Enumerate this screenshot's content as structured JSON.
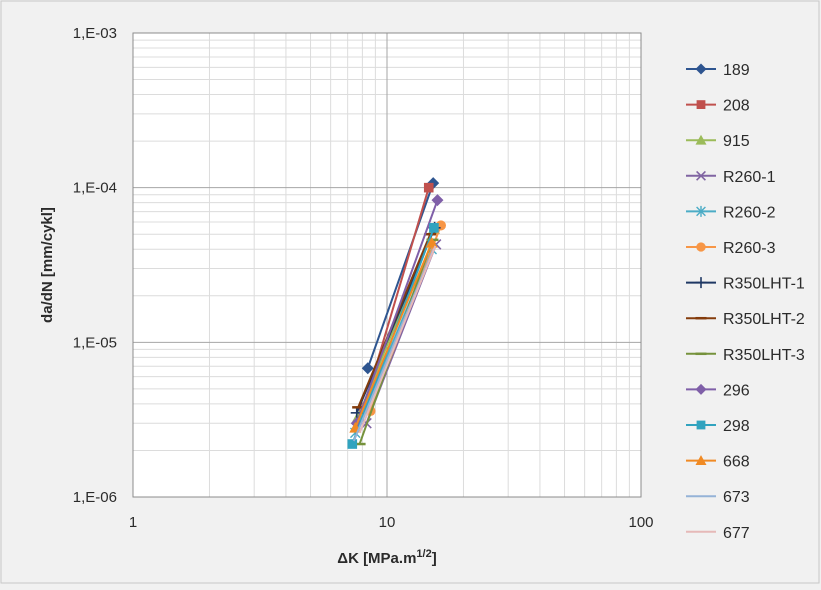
{
  "chart_data": {
    "type": "scatter",
    "xscale": "log",
    "yscale": "log",
    "xlim": [
      1,
      100
    ],
    "ylim": [
      1e-06,
      0.001
    ],
    "xticks": [
      {
        "value": 1,
        "label": "1"
      },
      {
        "value": 10,
        "label": "10"
      },
      {
        "value": 100,
        "label": "100"
      }
    ],
    "yticks": [
      {
        "value": 1e-06,
        "label": "1,E-06"
      },
      {
        "value": 1e-05,
        "label": "1,E-05"
      },
      {
        "value": 0.0001,
        "label": "1,E-04"
      },
      {
        "value": 0.001,
        "label": "1,E-03"
      }
    ],
    "xlabel": "ΔK [MPa.m",
    "xlabel_sup": "1/2",
    "xlabel_end": "]",
    "ylabel": "da/dN [mm/cykl]",
    "grid": "major and minor",
    "legend_position": "right",
    "series": [
      {
        "name": "189",
        "color": "#2e5590",
        "marker": "diamond",
        "points": [
          [
            8.4,
            6.8e-06
          ],
          [
            15.2,
            0.000107
          ]
        ]
      },
      {
        "name": "208",
        "color": "#c0504d",
        "marker": "square",
        "points": [
          [
            8.1,
            3.8e-06
          ],
          [
            14.6,
            0.0001
          ]
        ]
      },
      {
        "name": "915",
        "color": "#9bbb59",
        "marker": "triangle",
        "points": [
          [
            7.7,
            3.3e-06
          ],
          [
            15.3,
            5.4e-05
          ]
        ]
      },
      {
        "name": "R260-1",
        "color": "#8064a2",
        "marker": "x",
        "points": [
          [
            8.3,
            3e-06
          ],
          [
            15.6,
            4.3e-05
          ]
        ]
      },
      {
        "name": "R260-2",
        "color": "#4bacc6",
        "marker": "star",
        "points": [
          [
            7.5,
            2.6e-06
          ],
          [
            15.0,
            4e-05
          ]
        ]
      },
      {
        "name": "R260-3",
        "color": "#f79646",
        "marker": "circle",
        "points": [
          [
            8.6,
            3.6e-06
          ],
          [
            16.3,
            5.7e-05
          ]
        ]
      },
      {
        "name": "R350LHT-1",
        "color": "#1f3864",
        "marker": "plus",
        "points": [
          [
            7.6,
            3.5e-06
          ],
          [
            15.4,
            5.5e-05
          ]
        ]
      },
      {
        "name": "R350LHT-2",
        "color": "#843c0c",
        "marker": "dash",
        "points": [
          [
            7.7,
            3.8e-06
          ],
          [
            14.8,
            5e-05
          ]
        ]
      },
      {
        "name": "R350LHT-3",
        "color": "#76923c",
        "marker": "dash",
        "points": [
          [
            7.8,
            2.2e-06
          ],
          [
            15.1,
            4.6e-05
          ]
        ]
      },
      {
        "name": "296",
        "color": "#7f5fa8",
        "marker": "diamond",
        "points": [
          [
            7.6,
            3e-06
          ],
          [
            15.8,
            8.3e-05
          ]
        ]
      },
      {
        "name": "298",
        "color": "#31a3bf",
        "marker": "square",
        "points": [
          [
            7.3,
            2.2e-06
          ],
          [
            15.3,
            5.5e-05
          ]
        ]
      },
      {
        "name": "668",
        "color": "#f08a24",
        "marker": "triangle",
        "points": [
          [
            7.5,
            2.8e-06
          ],
          [
            15.0,
            4.4e-05
          ]
        ]
      },
      {
        "name": "673",
        "color": "#95b3d7",
        "marker": "line",
        "points": [
          [
            7.4,
            2.3e-06
          ],
          [
            15.2,
            4e-05
          ]
        ]
      },
      {
        "name": "677",
        "color": "#e6b9b8",
        "marker": "line",
        "points": [
          [
            7.8,
            2.6e-06
          ],
          [
            15.5,
            4.2e-05
          ]
        ]
      }
    ]
  }
}
